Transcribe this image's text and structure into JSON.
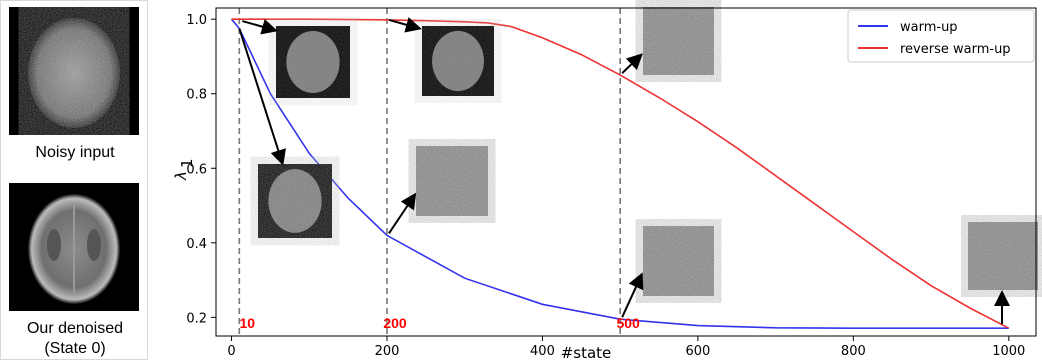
{
  "left_panel": {
    "noisy_caption": "Noisy input",
    "denoised_caption_1": "Our denoised",
    "denoised_caption_2": "(State 0)"
  },
  "chart_data": {
    "type": "line",
    "xlabel": "#state",
    "ylabel": "λ",
    "ylabel_subscript": "1",
    "xlim": [
      -20,
      1035
    ],
    "ylim": [
      0.15,
      1.03
    ],
    "xticks": [
      0,
      200,
      400,
      600,
      800,
      1000
    ],
    "yticks": [
      0.2,
      0.4,
      0.6,
      0.8,
      1.0
    ],
    "legend_position": "top-right",
    "series": [
      {
        "name": "warm-up",
        "color": "#3333ee",
        "x": [
          0,
          10,
          50,
          100,
          150,
          200,
          300,
          400,
          500,
          600,
          700,
          800,
          900,
          1000
        ],
        "y": [
          1.0,
          0.975,
          0.8,
          0.64,
          0.52,
          0.42,
          0.305,
          0.235,
          0.195,
          0.178,
          0.172,
          0.171,
          0.171,
          0.171
        ]
      },
      {
        "name": "reverse warm-up",
        "color": "#ee3333",
        "x": [
          0,
          100,
          200,
          250,
          300,
          330,
          360,
          400,
          450,
          500,
          550,
          600,
          650,
          700,
          750,
          800,
          850,
          900,
          950,
          1000
        ],
        "y": [
          1.0,
          1.0,
          0.998,
          0.996,
          0.993,
          0.99,
          0.98,
          0.95,
          0.905,
          0.85,
          0.79,
          0.725,
          0.655,
          0.58,
          0.505,
          0.43,
          0.355,
          0.285,
          0.225,
          0.171
        ]
      }
    ],
    "vlines": [
      {
        "x": 10,
        "label": "10"
      },
      {
        "x": 200,
        "label": "200"
      },
      {
        "x": 500,
        "label": "500"
      }
    ],
    "endpoint_label": {
      "x": 1000,
      "label": "1000"
    },
    "label_color": "#ff0000"
  }
}
